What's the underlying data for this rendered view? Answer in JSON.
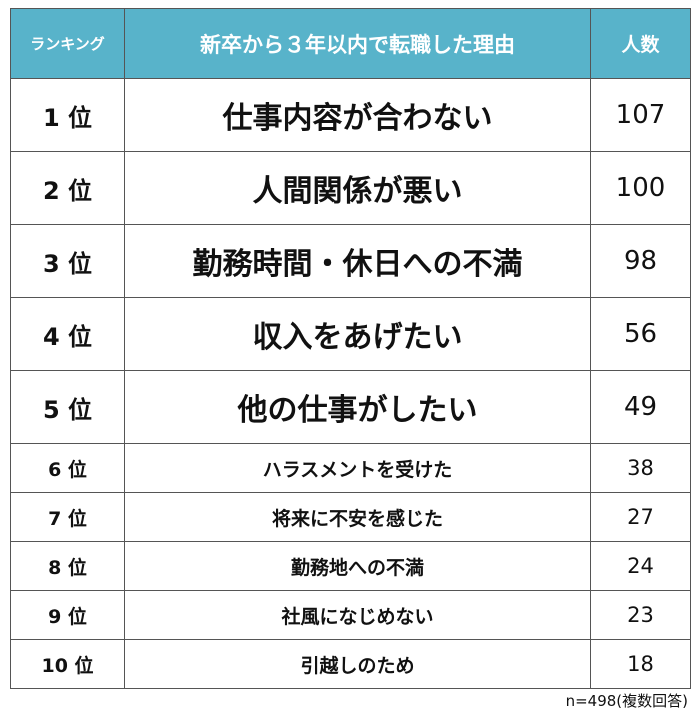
{
  "chart_data": {
    "type": "table",
    "headers": {
      "rank": "ランキング",
      "reason": "新卒から３年以内で転職した理由",
      "count": "人数"
    },
    "rows": [
      {
        "rank": "1 位",
        "reason": "仕事内容が合わない",
        "count": 107
      },
      {
        "rank": "2 位",
        "reason": "人間関係が悪い",
        "count": 100
      },
      {
        "rank": "3 位",
        "reason": "勤務時間・休日への不満",
        "count": 98
      },
      {
        "rank": "4 位",
        "reason": "収入をあげたい",
        "count": 56
      },
      {
        "rank": "5 位",
        "reason": "他の仕事がしたい",
        "count": 49
      },
      {
        "rank": "6 位",
        "reason": "ハラスメントを受けた",
        "count": 38
      },
      {
        "rank": "7 位",
        "reason": "将来に不安を感じた",
        "count": 27
      },
      {
        "rank": "8 位",
        "reason": "勤務地への不満",
        "count": 24
      },
      {
        "rank": "9 位",
        "reason": "社風になじめない",
        "count": 23
      },
      {
        "rank": "10 位",
        "reason": "引越しのため",
        "count": 18
      }
    ],
    "footnote": "n=498(複数回答)"
  },
  "colors": {
    "header_background": "#58b3ca",
    "header_text": "#ffffff",
    "border": "#555555"
  }
}
